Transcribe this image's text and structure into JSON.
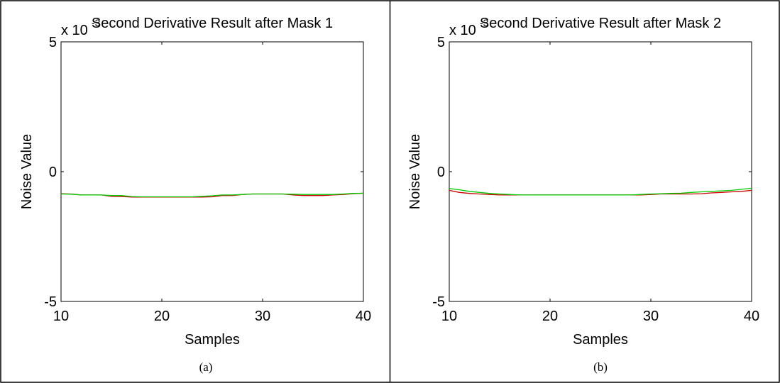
{
  "panels": [
    {
      "caption": "(a)"
    },
    {
      "caption": "(b)"
    }
  ],
  "chart_data": [
    {
      "type": "line",
      "title": "Second Derivative Result after Mask 1",
      "xlabel": "Samples",
      "ylabel": "Noise Value",
      "y_multiplier": "x 10",
      "y_multiplier_exp": "-3",
      "xlim": [
        10,
        40
      ],
      "ylim": [
        -5,
        5
      ],
      "xticks": [
        10,
        20,
        30,
        40
      ],
      "yticks": [
        -5,
        0,
        5
      ],
      "series": [
        {
          "color": "#cc0000",
          "x": [
            10,
            11,
            12,
            13,
            14,
            15,
            16,
            17,
            18,
            19,
            20,
            21,
            22,
            23,
            24,
            25,
            26,
            27,
            28,
            29,
            30,
            31,
            32,
            33,
            34,
            35,
            36,
            37,
            38,
            39,
            40
          ],
          "y": [
            -0.85,
            -0.86,
            -0.9,
            -0.9,
            -0.9,
            -0.95,
            -0.96,
            -0.98,
            -0.98,
            -0.98,
            -0.98,
            -0.98,
            -0.98,
            -0.98,
            -0.98,
            -0.97,
            -0.92,
            -0.92,
            -0.88,
            -0.86,
            -0.86,
            -0.86,
            -0.86,
            -0.9,
            -0.92,
            -0.92,
            -0.92,
            -0.9,
            -0.88,
            -0.85,
            -0.83
          ]
        },
        {
          "color": "#00cc00",
          "x": [
            10,
            11,
            12,
            13,
            14,
            15,
            16,
            17,
            18,
            19,
            20,
            21,
            22,
            23,
            24,
            25,
            26,
            27,
            28,
            29,
            30,
            31,
            32,
            33,
            34,
            35,
            36,
            37,
            38,
            39,
            40
          ],
          "y": [
            -0.86,
            -0.87,
            -0.9,
            -0.9,
            -0.9,
            -0.92,
            -0.92,
            -0.96,
            -0.97,
            -0.97,
            -0.97,
            -0.97,
            -0.97,
            -0.97,
            -0.95,
            -0.93,
            -0.9,
            -0.9,
            -0.88,
            -0.86,
            -0.86,
            -0.86,
            -0.86,
            -0.87,
            -0.88,
            -0.88,
            -0.88,
            -0.88,
            -0.86,
            -0.84,
            -0.83
          ]
        }
      ]
    },
    {
      "type": "line",
      "title": "Second Derivative Result after Mask 2",
      "xlabel": "Samples",
      "ylabel": "Noise Value",
      "y_multiplier": "x 10",
      "y_multiplier_exp": "-3",
      "xlim": [
        10,
        40
      ],
      "ylim": [
        -5,
        5
      ],
      "xticks": [
        10,
        20,
        30,
        40
      ],
      "yticks": [
        -5,
        0,
        5
      ],
      "series": [
        {
          "color": "#cc0000",
          "x": [
            10,
            11,
            12,
            13,
            14,
            15,
            16,
            17,
            18,
            19,
            20,
            21,
            22,
            23,
            24,
            25,
            26,
            27,
            28,
            29,
            30,
            31,
            32,
            33,
            34,
            35,
            36,
            37,
            38,
            39,
            40
          ],
          "y": [
            -0.72,
            -0.8,
            -0.84,
            -0.86,
            -0.88,
            -0.9,
            -0.9,
            -0.9,
            -0.9,
            -0.9,
            -0.9,
            -0.9,
            -0.9,
            -0.9,
            -0.9,
            -0.9,
            -0.9,
            -0.9,
            -0.9,
            -0.9,
            -0.88,
            -0.86,
            -0.86,
            -0.86,
            -0.86,
            -0.85,
            -0.82,
            -0.8,
            -0.78,
            -0.76,
            -0.72
          ]
        },
        {
          "color": "#00cc00",
          "x": [
            10,
            11,
            12,
            13,
            14,
            15,
            16,
            17,
            18,
            19,
            20,
            21,
            22,
            23,
            24,
            25,
            26,
            27,
            28,
            29,
            30,
            31,
            32,
            33,
            34,
            35,
            36,
            37,
            38,
            39,
            40
          ],
          "y": [
            -0.65,
            -0.7,
            -0.76,
            -0.8,
            -0.84,
            -0.86,
            -0.88,
            -0.9,
            -0.9,
            -0.9,
            -0.9,
            -0.9,
            -0.9,
            -0.9,
            -0.9,
            -0.9,
            -0.9,
            -0.9,
            -0.9,
            -0.88,
            -0.86,
            -0.85,
            -0.84,
            -0.83,
            -0.8,
            -0.78,
            -0.76,
            -0.74,
            -0.72,
            -0.68,
            -0.64
          ]
        }
      ]
    }
  ]
}
